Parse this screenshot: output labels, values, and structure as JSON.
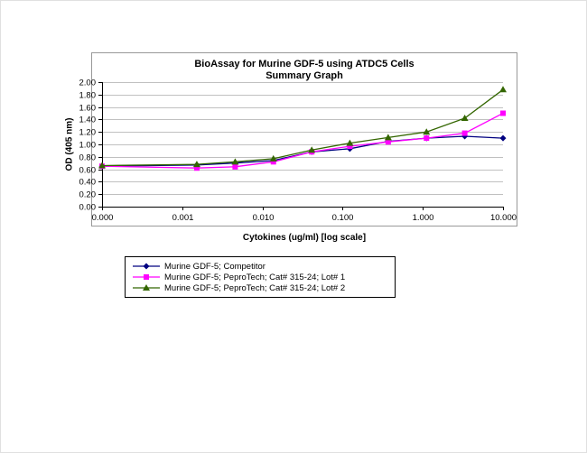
{
  "chart_data": {
    "type": "line",
    "title": "BioAssay for Murine GDF-5 using ATDC5 Cells",
    "subtitle": "Summary Graph",
    "xlabel": "Cytokines (ug/ml) [log scale]",
    "ylabel": "OD (405 nm)",
    "x_scale": "log",
    "xlim": [
      0.0001,
      10
    ],
    "ylim": [
      0.0,
      2.0
    ],
    "ytick_step": 0.2,
    "ytick_labels": [
      "0.00",
      "0.20",
      "0.40",
      "0.60",
      "0.80",
      "1.00",
      "1.20",
      "1.40",
      "1.60",
      "1.80",
      "2.00"
    ],
    "xtick_labels": [
      "0.000",
      "0.001",
      "0.010",
      "0.100",
      "1.000",
      "10.000"
    ],
    "grid": "horizontal",
    "gridline_color": "#c0c0c0",
    "axis_color": "#000000",
    "legend_position": "bottom",
    "x": [
      0.0001,
      0.00152,
      0.00457,
      0.0137,
      0.0412,
      0.123,
      0.37,
      1.111,
      3.333,
      10
    ],
    "series": [
      {
        "name": "Murine GDF-5; Competitor",
        "color": "#000080",
        "marker": "diamond",
        "values": [
          0.65,
          0.67,
          0.7,
          0.74,
          0.88,
          0.93,
          1.05,
          1.1,
          1.13,
          1.1
        ]
      },
      {
        "name": "Murine GDF-5; PeproTech; Cat# 315-24; Lot# 1",
        "color": "#ff00ff",
        "marker": "square",
        "values": [
          0.65,
          0.62,
          0.64,
          0.72,
          0.88,
          0.97,
          1.04,
          1.1,
          1.18,
          1.5
        ]
      },
      {
        "name": "Murine GDF-5; PeproTech; Cat# 315-24; Lot# 2",
        "color": "#336600",
        "marker": "triangle",
        "values": [
          0.66,
          0.68,
          0.72,
          0.77,
          0.91,
          1.02,
          1.11,
          1.2,
          1.42,
          1.88
        ]
      }
    ]
  }
}
